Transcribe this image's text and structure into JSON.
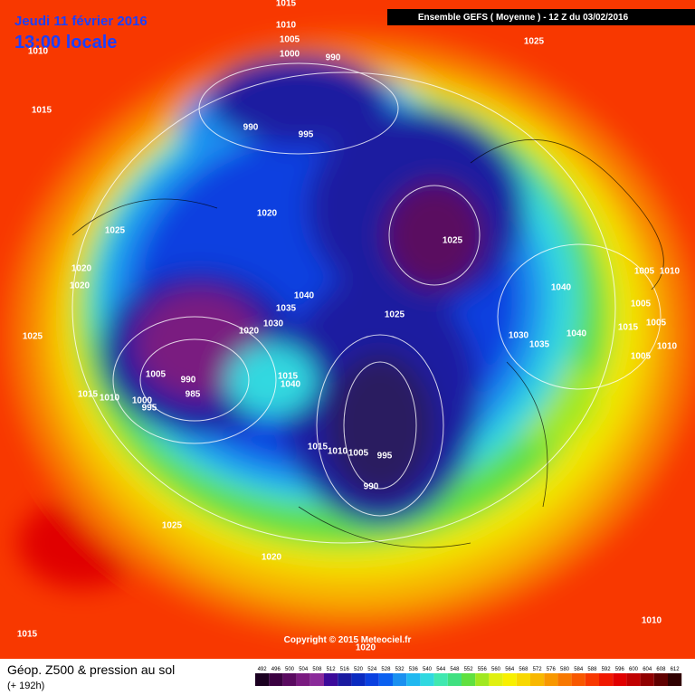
{
  "header": {
    "date": "Jeudi 11 février 2016",
    "time": "13:00 locale",
    "model": "Ensemble GEFS  ( Moyenne )  -  12 Z du 03/02/2016"
  },
  "footer": {
    "title": "Géop. Z500 & pression au sol",
    "lead": "(+ 192h)",
    "copyright": "Copyright © 2015 Meteociel.fr"
  },
  "isobars": [
    "1015",
    "1010",
    "1005",
    "1000",
    "1010",
    "1025",
    "990",
    "1015",
    "990",
    "995",
    "1020",
    "1025",
    "1020",
    "1020",
    "1025",
    "1040",
    "1035",
    "1030",
    "1020",
    "1040",
    "1005",
    "1010",
    "1005",
    "1015",
    "1005",
    "1025",
    "1025",
    "1030",
    "1035",
    "1040",
    "1010",
    "1005",
    "1005",
    "990",
    "1015",
    "1040",
    "985",
    "1015",
    "1010",
    "1000",
    "995",
    "995",
    "1015",
    "1010",
    "1005",
    "990",
    "1025",
    "1020",
    "1015",
    "1010",
    "1020"
  ],
  "legend": {
    "values": [
      492,
      496,
      500,
      504,
      508,
      512,
      516,
      520,
      524,
      528,
      532,
      536,
      540,
      544,
      548,
      552,
      556,
      560,
      564,
      568,
      572,
      576,
      580,
      584,
      588,
      592,
      596,
      600,
      604,
      608,
      612
    ],
    "colors": [
      "#1a0020",
      "#3a0040",
      "#5a0a60",
      "#7a1a80",
      "#8a2a9a",
      "#3c0a9a",
      "#1a1aa0",
      "#0a2ac0",
      "#0a40e0",
      "#0a60f0",
      "#1a90f0",
      "#20b8f0",
      "#30d8e0",
      "#40e8b0",
      "#40e080",
      "#60e040",
      "#a0e820",
      "#e0f010",
      "#f8f000",
      "#f8d800",
      "#f8b800",
      "#f89800",
      "#f87800",
      "#f85800",
      "#f83800",
      "#f01800",
      "#e00000",
      "#c00000",
      "#900000",
      "#600000",
      "#300000"
    ]
  }
}
